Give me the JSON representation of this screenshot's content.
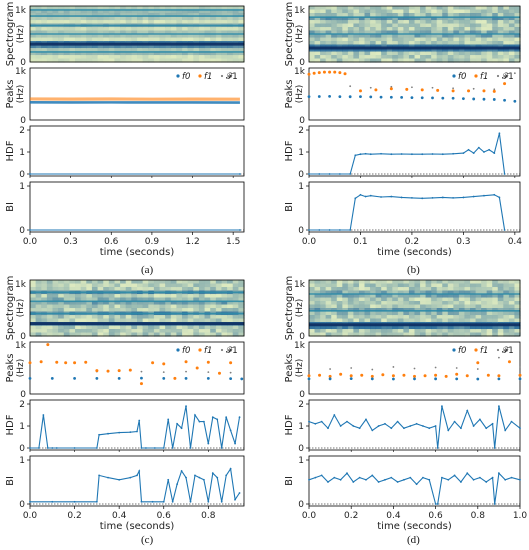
{
  "captions": [
    "(a)",
    "(b)",
    "(c)",
    "(d)"
  ],
  "chart_data": [
    {
      "panel": "(a)",
      "type": "line",
      "xlabel": "time (seconds)",
      "xlim": [
        0,
        1.58
      ],
      "xticks": [
        0.0,
        0.3,
        0.6,
        0.9,
        1.2,
        1.5
      ],
      "xtick_labels": [
        "0.0",
        "0.3",
        "0.6",
        "0.9",
        "1.2",
        "1.5"
      ],
      "colors": {
        "f0": "#1f77b4",
        "f1": "#ff7f0e",
        "F1": "#7f7f7f"
      },
      "subplots": {
        "spectrogram": {
          "ylabel": "Spectrogram (Hz)",
          "ytick_labels": [
            "0",
            "1k"
          ],
          "bands": [
            0.18,
            0.32,
            0.5,
            0.65,
            0.82,
            0.93
          ],
          "strong_band": 0.32,
          "texture": "harmonic"
        },
        "peaks": {
          "ylabel": "Peaks (Hz)",
          "ylim": [
            0,
            1000
          ],
          "ytick_labels": [
            "0",
            "1k"
          ],
          "legend": [
            "f0",
            "f1",
            "𝓕1"
          ],
          "f0": {
            "x": [
              0.0,
              0.3,
              0.6,
              0.9,
              1.2,
              1.55
            ],
            "y": [
              340,
              338,
              339,
              338,
              337,
              336
            ]
          },
          "f1": {
            "x": [
              0.0,
              0.3,
              0.6,
              0.9,
              1.2,
              1.55
            ],
            "y": [
              405,
              402,
              404,
              400,
              401,
              400
            ]
          }
        },
        "hdf": {
          "ylabel": "HDF",
          "ylim": [
            0,
            2
          ],
          "yticks": [
            0,
            1,
            2
          ],
          "x": [
            0.0,
            1.55
          ],
          "y": [
            0.0,
            0.0
          ]
        },
        "bi": {
          "ylabel": "BI",
          "ylim": [
            0,
            1
          ],
          "yticks": [
            0,
            1
          ],
          "x": [
            0.0,
            1.55
          ],
          "y": [
            0.0,
            0.0
          ]
        }
      }
    },
    {
      "panel": "(b)",
      "type": "line",
      "xlabel": "time (seconds)",
      "xlim": [
        0,
        0.41
      ],
      "xticks": [
        0.0,
        0.1,
        0.2,
        0.3,
        0.4
      ],
      "xtick_labels": [
        "0.0",
        "0.1",
        "0.2",
        "0.3",
        "0.4"
      ],
      "colors": {
        "f0": "#1f77b4",
        "f1": "#ff7f0e",
        "F1": "#7f7f7f"
      },
      "subplots": {
        "spectrogram": {
          "ylabel": "Spectrogram (Hz)",
          "ytick_labels": [
            "0",
            "1k"
          ],
          "bands": [
            0.25,
            0.5,
            0.8
          ],
          "strong_band": 0.25,
          "texture": "noisy"
        },
        "peaks": {
          "ylabel": "Peaks (Hz)",
          "ylim": [
            0,
            1000
          ],
          "ytick_labels": [
            "0",
            "1k"
          ],
          "legend": [
            "f0",
            "f1",
            "𝓕1"
          ],
          "f0": {
            "x": [
              0.0,
              0.02,
              0.04,
              0.06,
              0.08,
              0.1,
              0.12,
              0.14,
              0.16,
              0.18,
              0.2,
              0.22,
              0.24,
              0.26,
              0.28,
              0.3,
              0.32,
              0.34,
              0.36,
              0.38,
              0.4
            ],
            "y": [
              450,
              452,
              455,
              450,
              448,
              450,
              445,
              440,
              438,
              435,
              430,
              428,
              425,
              420,
              418,
              410,
              405,
              400,
              395,
              380,
              360
            ]
          },
          "f1": {
            "x": [
              0.0,
              0.01,
              0.02,
              0.03,
              0.04,
              0.05,
              0.06,
              0.07,
              0.1,
              0.13,
              0.16,
              0.19,
              0.22,
              0.25,
              0.28,
              0.31,
              0.34,
              0.36,
              0.38
            ],
            "y": [
              880,
              900,
              910,
              920,
              920,
              920,
              910,
              890,
              560,
              580,
              600,
              590,
              580,
              570,
              560,
              560,
              560,
              550,
              700
            ]
          },
          "F1": {
            "x": [
              0.08,
              0.12,
              0.16,
              0.2,
              0.24,
              0.28,
              0.32,
              0.36,
              0.4
            ],
            "y": [
              650,
              620,
              640,
              630,
              620,
              610,
              600,
              590,
              900
            ]
          }
        },
        "hdf": {
          "ylabel": "HDF",
          "ylim": [
            0,
            2
          ],
          "yticks": [
            0,
            1,
            2
          ],
          "x": [
            0.0,
            0.02,
            0.04,
            0.06,
            0.08,
            0.09,
            0.1,
            0.11,
            0.12,
            0.14,
            0.16,
            0.18,
            0.2,
            0.22,
            0.24,
            0.26,
            0.28,
            0.3,
            0.31,
            0.32,
            0.33,
            0.34,
            0.35,
            0.36,
            0.37,
            0.38
          ],
          "y": [
            0,
            0,
            0,
            0,
            0,
            0.85,
            0.9,
            0.92,
            0.9,
            0.92,
            0.9,
            0.91,
            0.9,
            0.9,
            0.91,
            0.9,
            0.92,
            0.95,
            1.1,
            0.95,
            1.2,
            1.0,
            1.1,
            0.95,
            1.85,
            0
          ]
        },
        "bi": {
          "ylabel": "BI",
          "ylim": [
            0,
            1
          ],
          "yticks": [
            0,
            1
          ],
          "x": [
            0.0,
            0.02,
            0.04,
            0.06,
            0.08,
            0.09,
            0.1,
            0.11,
            0.12,
            0.14,
            0.16,
            0.18,
            0.2,
            0.22,
            0.24,
            0.26,
            0.28,
            0.3,
            0.32,
            0.34,
            0.36,
            0.37,
            0.38
          ],
          "y": [
            0,
            0,
            0,
            0,
            0,
            0.72,
            0.8,
            0.76,
            0.78,
            0.75,
            0.76,
            0.74,
            0.73,
            0.72,
            0.73,
            0.74,
            0.73,
            0.74,
            0.76,
            0.78,
            0.8,
            0.74,
            0
          ]
        }
      }
    },
    {
      "panel": "(c)",
      "type": "line",
      "xlabel": "time (seconds)",
      "xlim": [
        0,
        0.96
      ],
      "xticks": [
        0.0,
        0.2,
        0.4,
        0.6,
        0.8
      ],
      "xtick_labels": [
        "0.0",
        "0.2",
        "0.4",
        "0.6",
        "0.8"
      ],
      "colors": {
        "f0": "#1f77b4",
        "f1": "#ff7f0e",
        "F1": "#7f7f7f"
      },
      "subplots": {
        "spectrogram": {
          "ylabel": "Spectrogram (Hz)",
          "ytick_labels": [
            "0",
            "1k"
          ],
          "bands": [
            0.22,
            0.4,
            0.62,
            0.78
          ],
          "strong_band": 0.22,
          "texture": "mixed"
        },
        "peaks": {
          "ylabel": "Peaks (Hz)",
          "ylim": [
            0,
            1000
          ],
          "ytick_labels": [
            "0",
            "1k"
          ],
          "legend": [
            "f0",
            "f1",
            "𝓕1"
          ],
          "f0": {
            "x": [
              0.0,
              0.1,
              0.2,
              0.3,
              0.4,
              0.5,
              0.6,
              0.7,
              0.8,
              0.9,
              0.95
            ],
            "y": [
              300,
              300,
              300,
              300,
              300,
              305,
              300,
              300,
              300,
              295,
              290
            ]
          },
          "f1": {
            "x": [
              0.0,
              0.05,
              0.08,
              0.12,
              0.16,
              0.2,
              0.25,
              0.3,
              0.35,
              0.4,
              0.45,
              0.5,
              0.55,
              0.6,
              0.65,
              0.7,
              0.75,
              0.8,
              0.85,
              0.9
            ],
            "y": [
              600,
              620,
              950,
              610,
              600,
              600,
              610,
              450,
              440,
              450,
              460,
              200,
              600,
              580,
              300,
              620,
              500,
              610,
              400,
              600
            ]
          },
          "F1": {
            "x": [
              0.3,
              0.4,
              0.5,
              0.6,
              0.7,
              0.8,
              0.9
            ],
            "y": [
              430,
              440,
              430,
              420,
              430,
              420,
              410
            ]
          }
        },
        "hdf": {
          "ylabel": "HDF",
          "ylim": [
            0,
            2
          ],
          "yticks": [
            0,
            1,
            2
          ],
          "x": [
            0.0,
            0.04,
            0.06,
            0.08,
            0.1,
            0.12,
            0.2,
            0.3,
            0.31,
            0.35,
            0.4,
            0.45,
            0.48,
            0.49,
            0.5,
            0.52,
            0.56,
            0.6,
            0.62,
            0.64,
            0.66,
            0.68,
            0.7,
            0.72,
            0.74,
            0.76,
            0.78,
            0.8,
            0.82,
            0.84,
            0.86,
            0.88,
            0.9,
            0.92,
            0.94
          ],
          "y": [
            0,
            0,
            1.5,
            0,
            0,
            0,
            0,
            0,
            0.6,
            0.65,
            0.7,
            0.72,
            0.75,
            1.25,
            0,
            0,
            0,
            0,
            1.3,
            0,
            1.1,
            0.9,
            1.9,
            0,
            1.5,
            1.2,
            1.2,
            0.2,
            1.4,
            1.3,
            0,
            1.4,
            0.8,
            0.2,
            1.4
          ]
        },
        "bi": {
          "ylabel": "BI",
          "ylim": [
            0,
            1
          ],
          "yticks": [
            0,
            1
          ],
          "x": [
            0.0,
            0.1,
            0.2,
            0.3,
            0.31,
            0.35,
            0.4,
            0.45,
            0.48,
            0.49,
            0.5,
            0.55,
            0.6,
            0.62,
            0.64,
            0.66,
            0.68,
            0.7,
            0.72,
            0.74,
            0.76,
            0.78,
            0.8,
            0.82,
            0.84,
            0.86,
            0.88,
            0.9,
            0.92,
            0.94
          ],
          "y": [
            0.05,
            0.05,
            0.05,
            0.05,
            0.65,
            0.6,
            0.55,
            0.6,
            0.65,
            0.75,
            0.05,
            0.05,
            0.05,
            0.55,
            0.05,
            0.45,
            0.75,
            0.6,
            0.05,
            0.65,
            0.6,
            0.55,
            0.05,
            0.7,
            0.6,
            0.05,
            0.65,
            0.8,
            0.1,
            0.25
          ]
        }
      }
    },
    {
      "panel": "(d)",
      "type": "line",
      "xlabel": "time (seconds)",
      "xlim": [
        0,
        1.0
      ],
      "xticks": [
        0.0,
        0.2,
        0.4,
        0.6,
        0.8,
        1.0
      ],
      "xtick_labels": [
        "0.0",
        "0.2",
        "0.4",
        "0.6",
        "0.8",
        "1.0"
      ],
      "colors": {
        "f0": "#1f77b4",
        "f1": "#ff7f0e",
        "F1": "#7f7f7f"
      },
      "subplots": {
        "spectrogram": {
          "ylabel": "Spectrogram (Hz)",
          "ytick_labels": [
            "0",
            "1k"
          ],
          "bands": [
            0.2,
            0.45,
            0.75
          ],
          "strong_band": 0.2,
          "texture": "noisy"
        },
        "peaks": {
          "ylabel": "Peaks (Hz)",
          "ylim": [
            0,
            1000
          ],
          "ytick_labels": [
            "0",
            "1k"
          ],
          "legend": [
            "f0",
            "f1",
            "𝓕1"
          ],
          "f0": {
            "x": [
              0.0,
              0.1,
              0.2,
              0.3,
              0.4,
              0.5,
              0.6,
              0.7,
              0.8,
              0.9,
              1.0
            ],
            "y": [
              290,
              292,
              295,
              290,
              288,
              290,
              292,
              290,
              288,
              290,
              290
            ]
          },
          "f1": {
            "x": [
              0.0,
              0.05,
              0.1,
              0.15,
              0.2,
              0.25,
              0.3,
              0.35,
              0.4,
              0.45,
              0.5,
              0.55,
              0.6,
              0.65,
              0.7,
              0.75,
              0.8,
              0.85,
              0.9,
              0.95,
              1.0
            ],
            "y": [
              350,
              360,
              340,
              380,
              350,
              360,
              340,
              370,
              350,
              360,
              340,
              350,
              360,
              340,
              380,
              350,
              600,
              360,
              350,
              620,
              360
            ]
          },
          "F1": {
            "x": [
              0.0,
              0.1,
              0.2,
              0.3,
              0.4,
              0.5,
              0.6,
              0.7,
              0.8,
              0.9,
              1.0
            ],
            "y": [
              450,
              480,
              500,
              470,
              520,
              490,
              510,
              500,
              480,
              700,
              520
            ]
          }
        },
        "hdf": {
          "ylabel": "HDF",
          "ylim": [
            0,
            2
          ],
          "yticks": [
            0,
            1,
            2
          ],
          "x": [
            0.0,
            0.03,
            0.06,
            0.09,
            0.12,
            0.15,
            0.18,
            0.21,
            0.24,
            0.27,
            0.3,
            0.33,
            0.36,
            0.39,
            0.42,
            0.45,
            0.48,
            0.51,
            0.54,
            0.57,
            0.6,
            0.61,
            0.63,
            0.66,
            0.69,
            0.72,
            0.75,
            0.78,
            0.81,
            0.84,
            0.87,
            0.88,
            0.9,
            0.93,
            0.96,
            1.0
          ],
          "y": [
            1.2,
            1.1,
            1.2,
            0.9,
            1.5,
            1.0,
            1.2,
            1.0,
            0.9,
            1.3,
            0.8,
            1.0,
            1.1,
            0.9,
            1.2,
            0.9,
            1.0,
            1.1,
            1.0,
            0.9,
            1.0,
            0,
            1.9,
            0.8,
            1.2,
            0.9,
            1.7,
            1.0,
            1.3,
            0.9,
            1.1,
            0,
            1.9,
            0.8,
            1.2,
            0.9
          ]
        },
        "bi": {
          "ylabel": "BI",
          "ylim": [
            0,
            1
          ],
          "yticks": [
            0,
            1
          ],
          "x": [
            0.0,
            0.03,
            0.06,
            0.09,
            0.12,
            0.15,
            0.18,
            0.21,
            0.24,
            0.27,
            0.3,
            0.33,
            0.36,
            0.39,
            0.42,
            0.45,
            0.48,
            0.51,
            0.54,
            0.57,
            0.6,
            0.61,
            0.63,
            0.66,
            0.69,
            0.72,
            0.75,
            0.78,
            0.81,
            0.84,
            0.87,
            0.88,
            0.9,
            0.93,
            0.96,
            1.0
          ],
          "y": [
            0.55,
            0.6,
            0.65,
            0.5,
            0.6,
            0.55,
            0.7,
            0.5,
            0.6,
            0.55,
            0.65,
            0.5,
            0.55,
            0.6,
            0.5,
            0.55,
            0.6,
            0.45,
            0.6,
            0.55,
            0.0,
            0.0,
            0.6,
            0.55,
            0.65,
            0.5,
            0.7,
            0.55,
            0.6,
            0.5,
            0.6,
            0.0,
            0.7,
            0.55,
            0.6,
            0.55
          ]
        }
      }
    }
  ]
}
